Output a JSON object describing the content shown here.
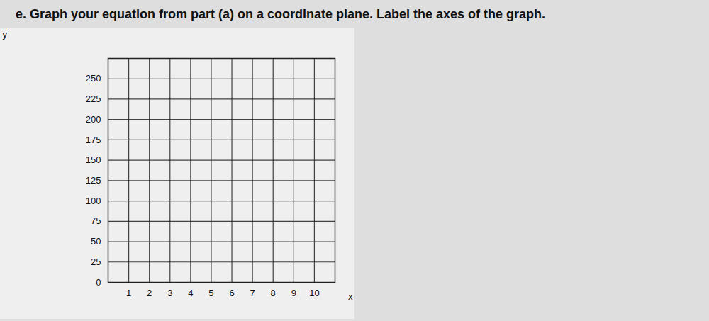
{
  "chart_data": {
    "type": "grid",
    "title": "e.  Graph your equation from part (a) on a coordinate plane. Label the axes of the graph.",
    "x_label": "x",
    "y_label": "y",
    "xlim": [
      0,
      11
    ],
    "xticks": [
      1,
      2,
      3,
      4,
      5,
      6,
      7,
      8,
      9,
      10
    ],
    "ylim": [
      0,
      275
    ],
    "yticks": [
      0,
      25,
      50,
      75,
      100,
      125,
      150,
      175,
      200,
      225,
      250
    ],
    "grid": true
  }
}
